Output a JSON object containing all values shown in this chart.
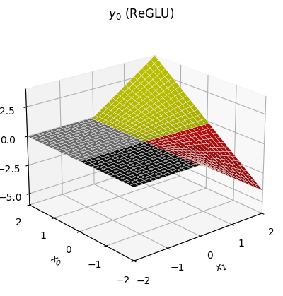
{
  "title": "$y_0$ (ReGLU)",
  "xlabel": "$x_1$",
  "ylabel": "$x_0$",
  "x_range": [
    -2,
    2
  ],
  "y_range": [
    -2,
    2
  ],
  "zlim": [
    -6.0,
    4.0
  ],
  "zticks": [
    -5.0,
    -2.5,
    0.0,
    2.5
  ],
  "n_points": 30,
  "elev": 22,
  "azim": -130,
  "figsize": [
    4.0,
    4.19
  ],
  "dpi": 100,
  "color_pp": "#b8be00",
  "color_pn": "#cc1111",
  "color_np": "#888888",
  "color_nn": "#111111",
  "background_color": "#ffffff",
  "xticks": [
    -2,
    -1,
    0,
    1,
    2
  ],
  "yticks": [
    -2,
    -1,
    0,
    1,
    2
  ]
}
